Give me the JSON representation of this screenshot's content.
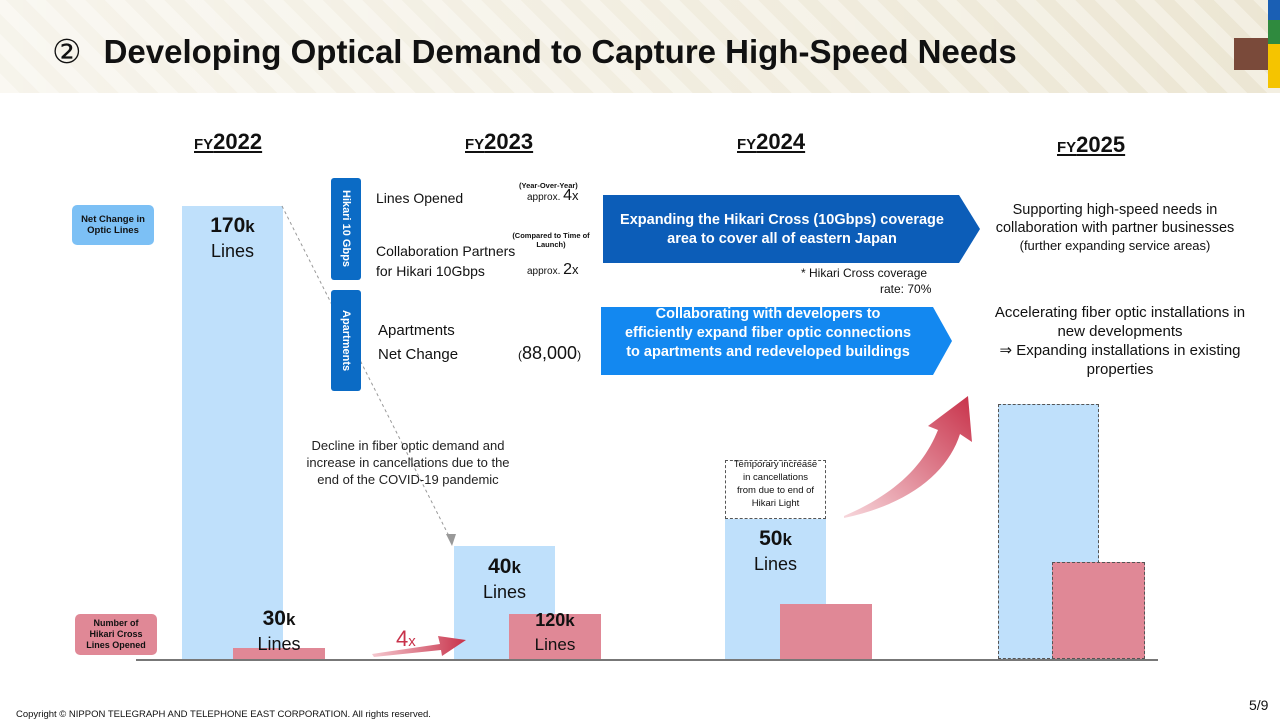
{
  "header": {
    "number": "②",
    "title": "Developing Optical Demand to Capture High-Speed Needs",
    "brand_colors": [
      "#7a4a3a",
      "#2f8a3e",
      "#f5c400",
      "#1a5fb4"
    ]
  },
  "years": [
    {
      "prefix": "FY",
      "year": "2022"
    },
    {
      "prefix": "FY",
      "year": "2023"
    },
    {
      "prefix": "FY",
      "year": "2024"
    },
    {
      "prefix": "FY",
      "year": "2025"
    }
  ],
  "legend": {
    "net_change": "Net Change in Optic Lines",
    "hikari_opened": "Number of Hikari Cross Lines Opened"
  },
  "bars": {
    "fy2022_net": {
      "value": "170",
      "unit": "k",
      "label": "Lines"
    },
    "fy2022_hikari": {
      "value": "30",
      "unit": "k",
      "label": "Lines"
    },
    "fy2023_net": {
      "value": "40",
      "unit": "k",
      "label": "Lines"
    },
    "fy2023_hikari": {
      "value": "120",
      "unit": "k",
      "label": "Lines"
    },
    "fy2024_net": {
      "value": "50",
      "unit": "k",
      "label": "Lines"
    }
  },
  "multiplier": {
    "value": "4",
    "unit": "x"
  },
  "decline_note": "Decline in fiber optic demand and increase in cancellations due to the end of the COVID-19 pandemic",
  "temp_note": "Temporary increase in cancellations from due to end of Hikari Light",
  "hikari_section": {
    "tab": "Hikari 10 Gbps",
    "lines_opened_label": "Lines Opened",
    "yoy_note": "(Year-Over-Year)",
    "lines_opened_value": "approx.",
    "lines_opened_mult": "4",
    "lines_opened_x": "x",
    "partners_label_1": "Collaboration Partners",
    "partners_label_2": "for Hikari 10Gbps",
    "launch_note": "(Compared to Time of Launch)",
    "partners_value": "approx.",
    "partners_mult": "2",
    "partners_x": "x",
    "arrow_text": "Expanding the Hikari Cross (10Gbps) coverage area to cover all of eastern Japan",
    "coverage_note_1": "* Hikari Cross coverage",
    "coverage_note_2": "rate: 70%",
    "fy2025_text_1": "Supporting high-speed needs in collaboration with partner businesses",
    "fy2025_text_2": "(further expanding service areas)"
  },
  "apartments_section": {
    "tab": "Apartments",
    "label_1": "Apartments",
    "label_2": "Net Change",
    "value": "88,000",
    "paren_open": "(",
    "paren_close": ")",
    "arrow_text": "Collaborating with developers to efficiently expand fiber optic connections to apartments and redeveloped buildings",
    "fy2025_text_1": "Accelerating fiber optic installations in new developments",
    "fy2025_text_2": "⇒ Expanding installations in existing properties"
  },
  "footer": {
    "copyright": "Copyright © NIPPON TELEGRAPH AND TELEPHONE EAST CORPORATION. All rights reserved.",
    "page": "5/9"
  }
}
